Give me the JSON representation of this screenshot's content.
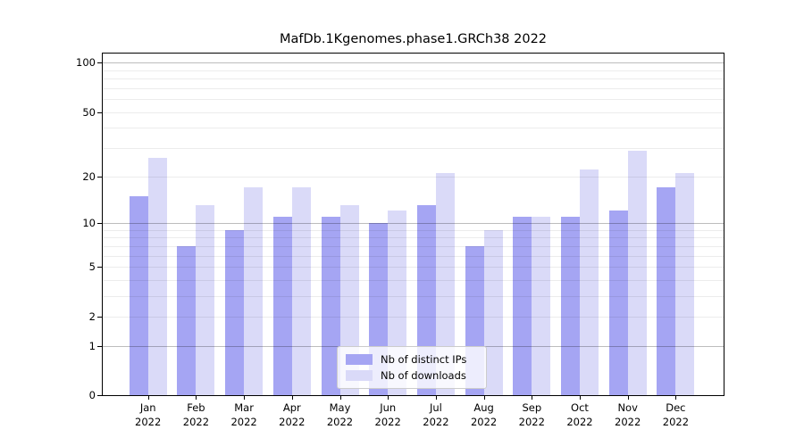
{
  "chart_data": {
    "type": "bar",
    "title": "MafDb.1Kgenomes.phase1.GRCh38 2022",
    "categories": [
      "Jan 2022",
      "Feb 2022",
      "Mar 2022",
      "Apr 2022",
      "May 2022",
      "Jun 2022",
      "Jul 2022",
      "Aug 2022",
      "Sep 2022",
      "Oct 2022",
      "Nov 2022",
      "Dec 2022"
    ],
    "series": [
      {
        "name": "Nb of distinct IPs",
        "color": "#a5a5f3",
        "values": [
          15,
          7,
          9,
          11,
          11,
          10,
          13,
          7,
          11,
          11,
          12,
          17
        ]
      },
      {
        "name": "Nb of downloads",
        "color": "#dadaf8",
        "values": [
          26,
          13,
          17,
          17,
          13,
          12,
          21,
          9,
          11,
          22,
          29,
          21
        ]
      }
    ],
    "xlabel": "",
    "ylabel": "",
    "yscale": "log1p",
    "ylim": [
      0,
      113
    ],
    "yticks": [
      0,
      1,
      2,
      5,
      10,
      20,
      50,
      100
    ],
    "grid": {
      "major": [
        1,
        10,
        100
      ],
      "minor": [
        2,
        3,
        4,
        5,
        6,
        7,
        8,
        9,
        20,
        30,
        40,
        50,
        60,
        70,
        80,
        90
      ]
    },
    "legend_position": "lower center",
    "grid_on": true
  },
  "colors": {
    "background": "#ffffff",
    "axis": "#000000",
    "text": "#000000",
    "bar_distinct_ips": "#a5a5f3",
    "bar_downloads": "#dadaf8",
    "grid_major": "#bdbdbd",
    "grid_minor": "#ececec",
    "legend_border": "#cccccc"
  }
}
